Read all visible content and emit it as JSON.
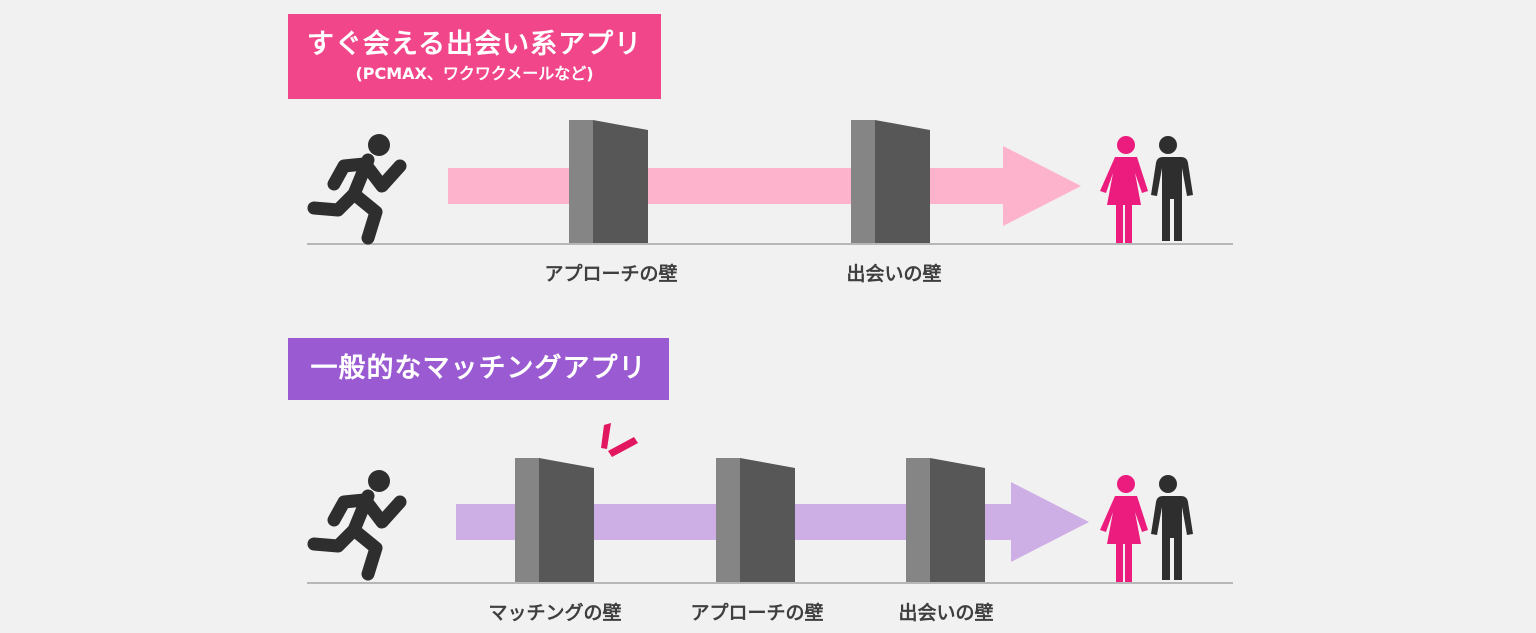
{
  "top": {
    "title": "すぐ会える出会い系アプリ",
    "subtitle": "(PCMAX、ワクワクメールなど)",
    "walls": [
      "アプローチの壁",
      "出会いの壁"
    ],
    "arrow_color": "#fdb3cc"
  },
  "bottom": {
    "title": "一般的なマッチングアプリ",
    "walls": [
      "マッチングの壁",
      "アプローチの壁",
      "出会いの壁"
    ],
    "arrow_color": "#cdaee5"
  },
  "icons": {
    "runner": "running-person-icon",
    "couple": "couple-icon",
    "impact": "impact-burst-icon"
  },
  "colors": {
    "pink_banner": "#f2468a",
    "purple_banner": "#9a5ad1",
    "wall_front": "#575757",
    "wall_side": "#858585",
    "figure_dark": "#2e2e2e",
    "figure_pink": "#ec1c7e",
    "impact": "#e2175f"
  }
}
